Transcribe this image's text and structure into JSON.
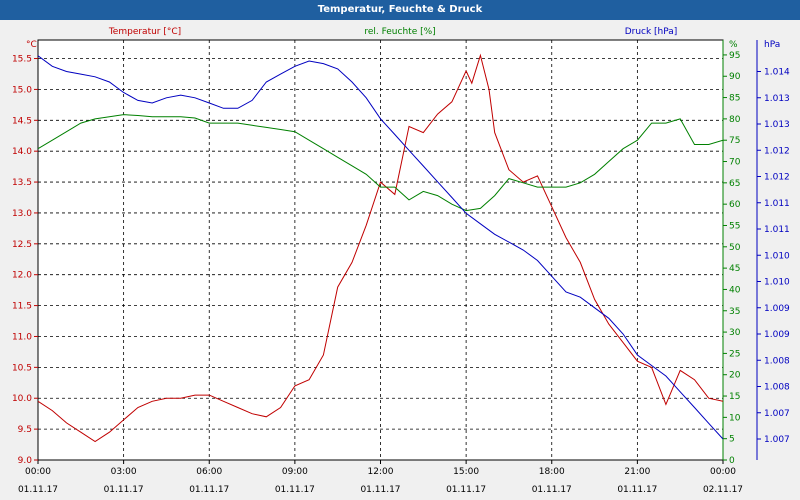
{
  "window": {
    "title": "Temperatur, Feuchte & Druck"
  },
  "chart_data": {
    "type": "line",
    "title": "Temperatur, Feuchte & Druck",
    "x_ticks": [
      {
        "time": "00:00",
        "date": "01.11.17"
      },
      {
        "time": "03:00",
        "date": "01.11.17"
      },
      {
        "time": "06:00",
        "date": "01.11.17"
      },
      {
        "time": "09:00",
        "date": "01.11.17"
      },
      {
        "time": "12:00",
        "date": "01.11.17"
      },
      {
        "time": "15:00",
        "date": "01.11.17"
      },
      {
        "time": "18:00",
        "date": "01.11.17"
      },
      {
        "time": "21:00",
        "date": "01.11.17"
      },
      {
        "time": "00:00",
        "date": "02.11.17"
      }
    ],
    "xlim_hours": [
      0,
      24
    ],
    "grid": true,
    "axes": {
      "temperature": {
        "label": "Temperatur [°C]",
        "unit": "°C",
        "side": "left",
        "color": "#c00000",
        "ylim": [
          9.0,
          15.8
        ],
        "ticks": [
          "9.0",
          "9.5",
          "10.0",
          "10.5",
          "11.0",
          "11.5",
          "12.0",
          "12.5",
          "13.0",
          "13.5",
          "14.0",
          "14.5",
          "15.0",
          "15.5"
        ]
      },
      "humidity": {
        "label": "rel. Feuchte [%]",
        "unit": "%",
        "side": "right-inner",
        "color": "#008000",
        "ylim": [
          0,
          98.5
        ],
        "ticks": [
          "0",
          "5",
          "10",
          "15",
          "20",
          "25",
          "30",
          "35",
          "40",
          "45",
          "50",
          "55",
          "60",
          "65",
          "70",
          "75",
          "80",
          "85",
          "90",
          "95"
        ]
      },
      "pressure": {
        "label": "Druck [hPa]",
        "unit": "hPa",
        "side": "right-outer",
        "color": "#0000c0",
        "ylim": [
          1006.6,
          1014.6
        ],
        "ticks": [
          "1.007",
          "1.007",
          "1.008",
          "1.008",
          "1.009",
          "1.009",
          "1.010",
          "1.010",
          "1.011",
          "1.011",
          "1.012",
          "1.012",
          "1.013",
          "1.013",
          "1.014"
        ]
      }
    },
    "series": [
      {
        "name": "Temperatur [°C]",
        "axis": "temperature",
        "color": "#c00000",
        "x": [
          0,
          0.5,
          1,
          1.5,
          2,
          2.5,
          3,
          3.5,
          4,
          4.5,
          5,
          5.5,
          6,
          6.5,
          7,
          7.5,
          8,
          8.5,
          9,
          9.5,
          10,
          10.5,
          11,
          11.5,
          12,
          12.5,
          13,
          13.5,
          14,
          14.5,
          15,
          15.2,
          15.5,
          15.8,
          16,
          16.5,
          17,
          17.5,
          18,
          18.5,
          19,
          19.5,
          20,
          20.5,
          21,
          21.5,
          22,
          22.5,
          23,
          23.5,
          24
        ],
        "y": [
          9.95,
          9.8,
          9.6,
          9.45,
          9.3,
          9.45,
          9.65,
          9.85,
          9.95,
          10.0,
          10.0,
          10.05,
          10.05,
          9.95,
          9.85,
          9.75,
          9.7,
          9.85,
          10.2,
          10.3,
          10.7,
          11.8,
          12.2,
          12.8,
          13.5,
          13.3,
          14.4,
          14.3,
          14.6,
          14.8,
          15.3,
          15.1,
          15.55,
          15.0,
          14.3,
          13.7,
          13.5,
          13.6,
          13.1,
          12.6,
          12.2,
          11.6,
          11.2,
          10.9,
          10.6,
          10.5,
          9.9,
          10.45,
          10.3,
          10.0,
          9.95
        ]
      },
      {
        "name": "rel. Feuchte [%]",
        "axis": "humidity",
        "color": "#008000",
        "x": [
          0,
          0.5,
          1,
          1.5,
          2,
          2.5,
          3,
          3.5,
          4,
          4.5,
          5,
          5.5,
          6,
          6.5,
          7,
          7.5,
          8,
          8.5,
          9,
          9.5,
          10,
          10.5,
          11,
          11.5,
          12,
          12.5,
          13,
          13.5,
          14,
          14.5,
          15,
          15.5,
          16,
          16.5,
          17,
          17.5,
          18,
          18.5,
          19,
          19.5,
          20,
          20.5,
          21,
          21.5,
          22,
          22.5,
          23,
          23.5,
          24
        ],
        "y": [
          73,
          75,
          77,
          79,
          80,
          80.5,
          81,
          80.8,
          80.5,
          80.5,
          80.5,
          80.2,
          79,
          79,
          79,
          78.5,
          78,
          77.5,
          77,
          75,
          73,
          71,
          69,
          67,
          64,
          64,
          61,
          63,
          62,
          60,
          58.5,
          59,
          62,
          66,
          65,
          64,
          64,
          64,
          65,
          67,
          70,
          73,
          75,
          79,
          79,
          80,
          74,
          74,
          75
        ]
      },
      {
        "name": "Druck [hPa]",
        "axis": "pressure",
        "color": "#0000c0",
        "x": [
          0,
          0.5,
          1,
          1.5,
          2,
          2.5,
          3,
          3.5,
          4,
          4.5,
          5,
          5.5,
          6,
          6.5,
          7,
          7.5,
          8,
          8.5,
          9,
          9.5,
          10,
          10.5,
          11,
          11.5,
          12,
          12.5,
          13,
          13.5,
          14,
          14.5,
          15,
          15.5,
          16,
          16.5,
          17,
          17.5,
          18,
          18.5,
          19,
          19.5,
          20,
          20.5,
          21,
          21.5,
          22,
          22.5,
          23,
          23.5,
          24
        ],
        "y": [
          1014.3,
          1014.1,
          1014.0,
          1013.95,
          1013.9,
          1013.8,
          1013.6,
          1013.45,
          1013.4,
          1013.5,
          1013.55,
          1013.5,
          1013.4,
          1013.3,
          1013.3,
          1013.45,
          1013.8,
          1013.95,
          1014.1,
          1014.2,
          1014.15,
          1014.05,
          1013.8,
          1013.5,
          1013.1,
          1012.8,
          1012.5,
          1012.2,
          1011.9,
          1011.6,
          1011.3,
          1011.1,
          1010.9,
          1010.75,
          1010.6,
          1010.4,
          1010.1,
          1009.8,
          1009.7,
          1009.5,
          1009.3,
          1009.0,
          1008.6,
          1008.4,
          1008.2,
          1007.9,
          1007.6,
          1007.3,
          1007.0
        ]
      }
    ]
  }
}
